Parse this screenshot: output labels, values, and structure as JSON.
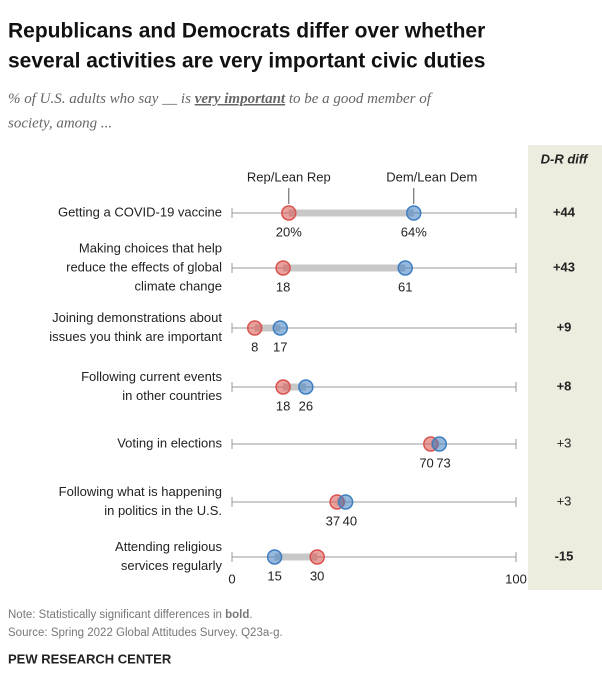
{
  "chart_data": {
    "type": "dot",
    "title": [
      "Republicans and Democrats differ over whether",
      "several activities are very important civic duties"
    ],
    "subtitle": {
      "before": "% of U.S. adults who say __ is ",
      "emphasis": "very important",
      "after": " to be a good member of",
      "line2": "society, among ..."
    },
    "categories": [
      [
        "Getting a COVID-19 vaccine"
      ],
      [
        "Making choices that help",
        "reduce the effects of global",
        "climate change"
      ],
      [
        "Joining demonstrations about",
        "issues you think are important"
      ],
      [
        "Following current events",
        "in other countries"
      ],
      [
        "Voting in elections"
      ],
      [
        "Following what is happening",
        "in politics in the U.S."
      ],
      [
        "Attending religious",
        "services regularly"
      ]
    ],
    "series": [
      {
        "name": "Rep/Lean Rep",
        "color": "#d9534f",
        "values": [
          20,
          18,
          8,
          18,
          70,
          37,
          30
        ],
        "value_labels": [
          "20%",
          "18",
          "8",
          "18",
          "70",
          "37",
          "30"
        ]
      },
      {
        "name": "Dem/Lean Dem",
        "color": "#3f7fc1",
        "values": [
          64,
          61,
          17,
          26,
          73,
          40,
          15
        ],
        "value_labels": [
          "64%",
          "61",
          "17",
          "26",
          "73",
          "40",
          "15"
        ]
      }
    ],
    "xlim": [
      0,
      100
    ],
    "xticks": [
      0,
      100
    ],
    "diff": {
      "title": "D-R diff",
      "values": [
        44,
        43,
        9,
        8,
        3,
        3,
        -15
      ],
      "value_labels": [
        "+44",
        "+43",
        "+9",
        "+8",
        "+3",
        "+3",
        "-15"
      ],
      "bold": [
        true,
        true,
        true,
        true,
        false,
        false,
        true
      ]
    },
    "note": [
      "Note: Statistically significant differences in ",
      "bold",
      "."
    ],
    "source": "Source: Spring 2022 Global Attitudes Survey. Q23a-g.",
    "footer": "PEW RESEARCH CENTER"
  }
}
